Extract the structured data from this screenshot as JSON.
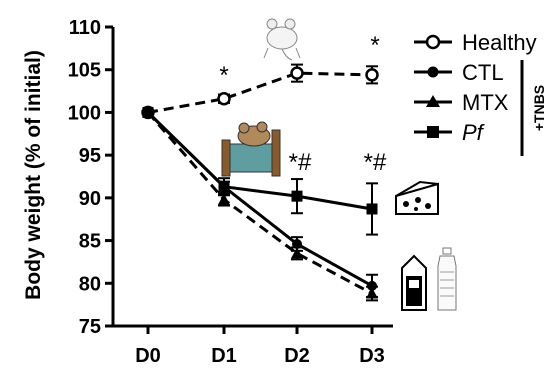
{
  "chart_data": {
    "type": "line",
    "ylabel": "Body weight (% of initial)",
    "xlabel": "",
    "categories": [
      "D0",
      "D1",
      "D2",
      "D3"
    ],
    "ylim": [
      75,
      110
    ],
    "yticks": [
      75,
      80,
      85,
      90,
      95,
      100,
      105,
      110
    ],
    "series": [
      {
        "name": "Healthy",
        "marker": "open-circle",
        "line": "dashed",
        "values": [
          100,
          101.6,
          104.6,
          104.4
        ],
        "errors": [
          0.2,
          0.5,
          1.0,
          1.0
        ]
      },
      {
        "name": "CTL",
        "marker": "filled-circle",
        "line": "solid",
        "values": [
          100,
          91.3,
          84.6,
          79.7
        ],
        "errors": [
          0.2,
          0.6,
          0.8,
          1.3
        ]
      },
      {
        "name": "MTX",
        "marker": "triangle",
        "line": "dashed",
        "values": [
          100,
          89.8,
          83.5,
          78.8
        ],
        "errors": [
          0.2,
          0.7,
          0.7,
          0.8
        ]
      },
      {
        "name": "Pf",
        "marker": "square",
        "line": "solid",
        "values": [
          100,
          91.3,
          90.2,
          88.7
        ],
        "errors": [
          0.2,
          1.0,
          2.0,
          3.0
        ]
      }
    ],
    "group_label": "+TNBS",
    "annotations": [
      "*",
      "*",
      "*#",
      "*#"
    ],
    "legend_position": "top-right"
  }
}
